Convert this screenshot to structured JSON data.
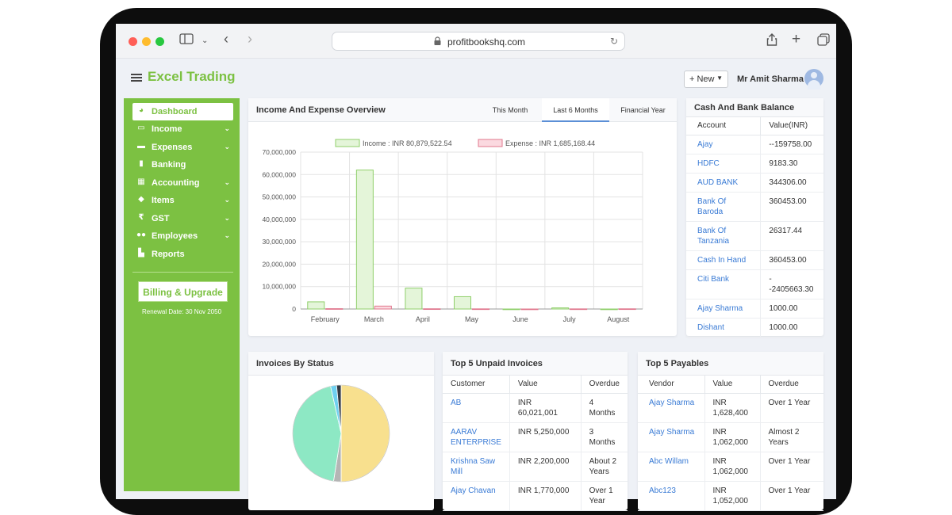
{
  "browser": {
    "url": "profitbookshq.com"
  },
  "header": {
    "brand": "Excel Trading",
    "new_button": "+ New",
    "user_name": "Mr Amit Sharma"
  },
  "sidebar": {
    "items": [
      {
        "label": "Dashboard",
        "icon": "pie-chart-icon",
        "active": true,
        "chevron": false
      },
      {
        "label": "Income",
        "icon": "money-icon",
        "active": false,
        "chevron": true
      },
      {
        "label": "Expenses",
        "icon": "credit-card-icon",
        "active": false,
        "chevron": true
      },
      {
        "label": "Banking",
        "icon": "building-icon",
        "active": false,
        "chevron": false
      },
      {
        "label": "Accounting",
        "icon": "calculator-icon",
        "active": false,
        "chevron": true
      },
      {
        "label": "Items",
        "icon": "tags-icon",
        "active": false,
        "chevron": true
      },
      {
        "label": "GST",
        "icon": "rupee-icon",
        "active": false,
        "chevron": true
      },
      {
        "label": "Employees",
        "icon": "users-icon",
        "active": false,
        "chevron": true
      },
      {
        "label": "Reports",
        "icon": "chart-icon",
        "active": false,
        "chevron": false
      }
    ],
    "billing_button": "Billing & Upgrade",
    "renewal": "Renewal Date: 30 Nov 2050"
  },
  "overview": {
    "title": "Income And Expense Overview",
    "tabs": [
      "This Month",
      "Last 6 Months",
      "Financial Year"
    ],
    "active_tab": 1
  },
  "chart_data": {
    "type": "bar",
    "categories": [
      "February",
      "March",
      "April",
      "May",
      "June",
      "July",
      "August"
    ],
    "series": [
      {
        "name": "Income : INR 80,879,522.54",
        "values": [
          3200000,
          62000000,
          9300000,
          5500000,
          0,
          500000,
          0
        ],
        "color": "#e4f5d9",
        "stroke": "#8fcf6a"
      },
      {
        "name": "Expense : INR 1,685,168.44",
        "values": [
          150000,
          1300000,
          100000,
          60000,
          0,
          50000,
          80000
        ],
        "color": "#fbd9e0",
        "stroke": "#e0788e"
      }
    ],
    "ylim": [
      0,
      70000000
    ],
    "yticks": [
      "0",
      "10,000,000",
      "20,000,000",
      "30,000,000",
      "40,000,000",
      "50,000,000",
      "60,000,000",
      "70,000,000"
    ],
    "grid": true,
    "legend": "top"
  },
  "cash_bank": {
    "title": "Cash And Bank Balance",
    "columns": [
      "Account",
      "Value(INR)"
    ],
    "rows": [
      {
        "account": "Ajay",
        "value": "--159758.00"
      },
      {
        "account": "HDFC",
        "value": "9183.30"
      },
      {
        "account": "AUD BANK",
        "value": "344306.00"
      },
      {
        "account": "Bank Of Baroda",
        "value": "360453.00"
      },
      {
        "account": "Bank Of Tanzania",
        "value": "26317.44"
      },
      {
        "account": "Cash In Hand",
        "value": "360453.00"
      },
      {
        "account": "Citi Bank",
        "value": "--2405663.30"
      },
      {
        "account": "Ajay Sharma",
        "value": "1000.00"
      },
      {
        "account": "Dishant",
        "value": "1000.00"
      }
    ]
  },
  "invoices_status": {
    "title": "Invoices By Status",
    "slices": [
      {
        "value": 50,
        "color": "#f8e08e"
      },
      {
        "value": 2.5,
        "color": "#b5b5b5"
      },
      {
        "value": 44,
        "color": "#8de8c4"
      },
      {
        "value": 2,
        "color": "#6fd0f0"
      },
      {
        "value": 1.5,
        "color": "#333a44"
      }
    ]
  },
  "unpaid": {
    "title": "Top 5 Unpaid Invoices",
    "columns": [
      "Customer",
      "Value",
      "Overdue"
    ],
    "rows": [
      {
        "customer": "AB",
        "value": "INR 60,021,001",
        "overdue": "4 Months"
      },
      {
        "customer": "AARAV ENTERPRISE",
        "value": "INR 5,250,000",
        "overdue": "3 Months"
      },
      {
        "customer": "Krishna Saw Mill",
        "value": "INR 2,200,000",
        "overdue": "About 2 Years"
      },
      {
        "customer": "Ajay Chavan",
        "value": "INR 1,770,000",
        "overdue": "Over 1 Year"
      }
    ]
  },
  "payables": {
    "title": "Top 5 Payables",
    "columns": [
      "Vendor",
      "Value",
      "Overdue"
    ],
    "rows": [
      {
        "vendor": "Ajay Sharma",
        "value": "INR 1,628,400",
        "overdue": "Over 1 Year"
      },
      {
        "vendor": "Ajay Sharma",
        "value": "INR 1,062,000",
        "overdue": "Almost 2 Years"
      },
      {
        "vendor": "Abc Willam",
        "value": "INR 1,062,000",
        "overdue": "Over 1 Year"
      },
      {
        "vendor": "Abc123",
        "value": "INR 1,052,000",
        "overdue": "Over 1 Year"
      }
    ]
  }
}
